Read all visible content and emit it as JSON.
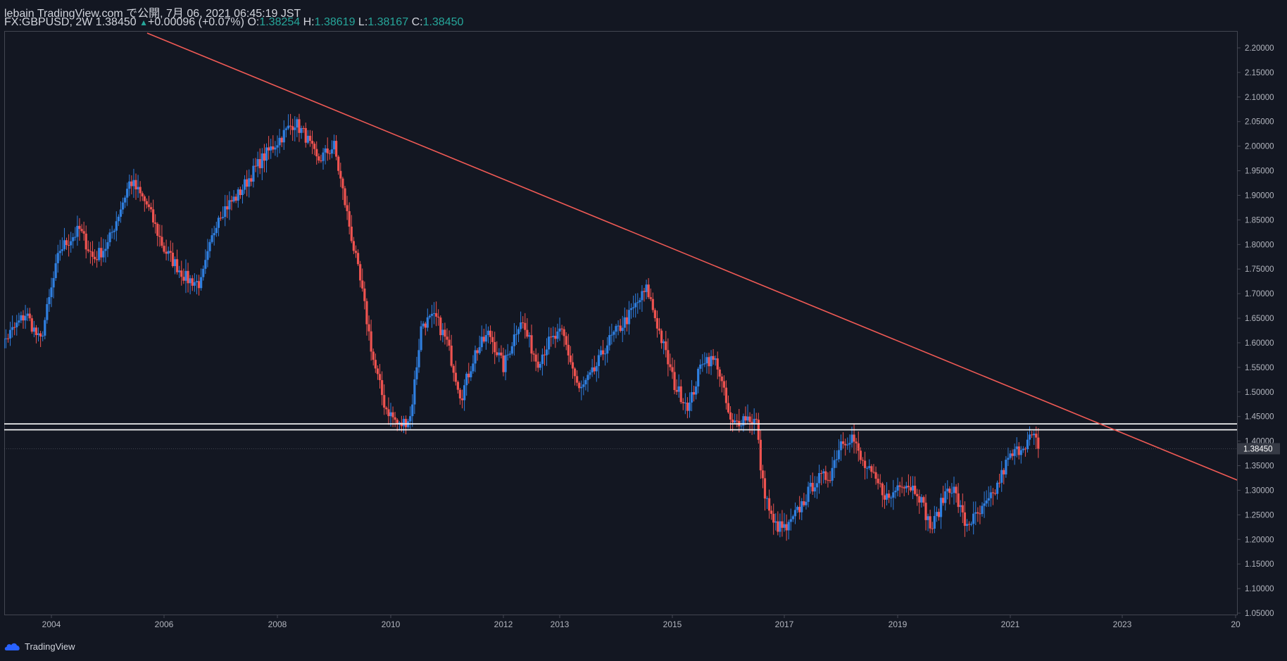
{
  "header": {
    "line1": "lebain TradingView.com で公開, 7月 06, 2021 06:45:19 JST",
    "symbol_info": "FX:GBPUSD, 2W 1.38450",
    "up_arrow": "▲",
    "change": "+0.00096 (+0.07%)",
    "open_label": "O:",
    "open_value": "1.38254",
    "high_label": "H:",
    "high_value": "1.38619",
    "low_label": "L:",
    "low_value": "1.38167",
    "close_label": "C:",
    "close_value": "1.38450"
  },
  "footer": {
    "brand": "TradingView"
  },
  "colors": {
    "background": "#131722",
    "up": "#2f7fe0",
    "down": "#ef5350",
    "trendline": "#f05a55",
    "hline": "#ffffff",
    "price_label_bg": "#363a45"
  },
  "chart_data": {
    "type": "candlestick",
    "symbol": "FX:GBPUSD",
    "interval": "2W",
    "ylim": [
      1.05,
      2.2
    ],
    "y_ticks": [
      "2.20000",
      "2.15000",
      "2.10000",
      "2.05000",
      "2.00000",
      "1.95000",
      "1.90000",
      "1.85000",
      "1.80000",
      "1.75000",
      "1.70000",
      "1.65000",
      "1.60000",
      "1.55000",
      "1.50000",
      "1.45000",
      "1.40000",
      "1.35000",
      "1.30000",
      "1.25000",
      "1.20000",
      "1.15000",
      "1.10000",
      "1.05000"
    ],
    "x_ticks": [
      "2004",
      "2006",
      "2008",
      "2010",
      "2012",
      "2013",
      "2015",
      "2017",
      "2019",
      "2021",
      "2023",
      "20"
    ],
    "current_price_label": "1.38450",
    "current_price": 1.3845,
    "horizontal_lines": [
      1.435,
      1.423
    ],
    "trendline": {
      "start": {
        "year": 2005.7,
        "price": 2.23
      },
      "end": {
        "year": 2029.8,
        "price": 1.095
      }
    },
    "anchors": [
      [
        2003.0,
        1.58
      ],
      [
        2003.55,
        1.66
      ],
      [
        2003.8,
        1.6
      ],
      [
        2004.15,
        1.79
      ],
      [
        2004.5,
        1.83
      ],
      [
        2004.75,
        1.77
      ],
      [
        2005.0,
        1.8
      ],
      [
        2005.4,
        1.93
      ],
      [
        2005.7,
        1.88
      ],
      [
        2006.0,
        1.79
      ],
      [
        2006.4,
        1.73
      ],
      [
        2006.65,
        1.72
      ],
      [
        2006.95,
        1.86
      ],
      [
        2007.3,
        1.9
      ],
      [
        2007.7,
        1.97
      ],
      [
        2008.0,
        2.01
      ],
      [
        2008.3,
        2.05
      ],
      [
        2008.5,
        2.02
      ],
      [
        2008.7,
        1.97
      ],
      [
        2009.0,
        2.0
      ],
      [
        2009.25,
        1.85
      ],
      [
        2009.5,
        1.7
      ],
      [
        2009.7,
        1.56
      ],
      [
        2009.9,
        1.47
      ],
      [
        2010.15,
        1.43
      ],
      [
        2010.35,
        1.45
      ],
      [
        2010.55,
        1.64
      ],
      [
        2010.8,
        1.65
      ],
      [
        2011.0,
        1.6
      ],
      [
        2011.25,
        1.49
      ],
      [
        2011.5,
        1.58
      ],
      [
        2011.75,
        1.62
      ],
      [
        2012.0,
        1.55
      ],
      [
        2012.3,
        1.65
      ],
      [
        2012.6,
        1.56
      ],
      [
        2012.8,
        1.6
      ],
      [
        2013.05,
        1.62
      ],
      [
        2013.35,
        1.5
      ],
      [
        2013.6,
        1.54
      ],
      [
        2013.85,
        1.6
      ],
      [
        2014.2,
        1.65
      ],
      [
        2014.55,
        1.71
      ],
      [
        2014.75,
        1.63
      ],
      [
        2015.05,
        1.51
      ],
      [
        2015.3,
        1.47
      ],
      [
        2015.55,
        1.57
      ],
      [
        2015.8,
        1.56
      ],
      [
        2016.05,
        1.43
      ],
      [
        2016.3,
        1.45
      ],
      [
        2016.5,
        1.44
      ],
      [
        2016.6,
        1.32
      ],
      [
        2016.8,
        1.23
      ],
      [
        2017.05,
        1.22
      ],
      [
        2017.3,
        1.27
      ],
      [
        2017.55,
        1.32
      ],
      [
        2017.8,
        1.33
      ],
      [
        2018.0,
        1.4
      ],
      [
        2018.2,
        1.41
      ],
      [
        2018.35,
        1.36
      ],
      [
        2018.6,
        1.32
      ],
      [
        2018.85,
        1.28
      ],
      [
        2019.05,
        1.32
      ],
      [
        2019.35,
        1.3
      ],
      [
        2019.6,
        1.22
      ],
      [
        2019.9,
        1.31
      ],
      [
        2020.0,
        1.3
      ],
      [
        2020.2,
        1.23
      ],
      [
        2020.45,
        1.25
      ],
      [
        2020.7,
        1.29
      ],
      [
        2020.95,
        1.36
      ],
      [
        2021.2,
        1.39
      ],
      [
        2021.4,
        1.41
      ],
      [
        2021.52,
        1.3845
      ]
    ]
  }
}
